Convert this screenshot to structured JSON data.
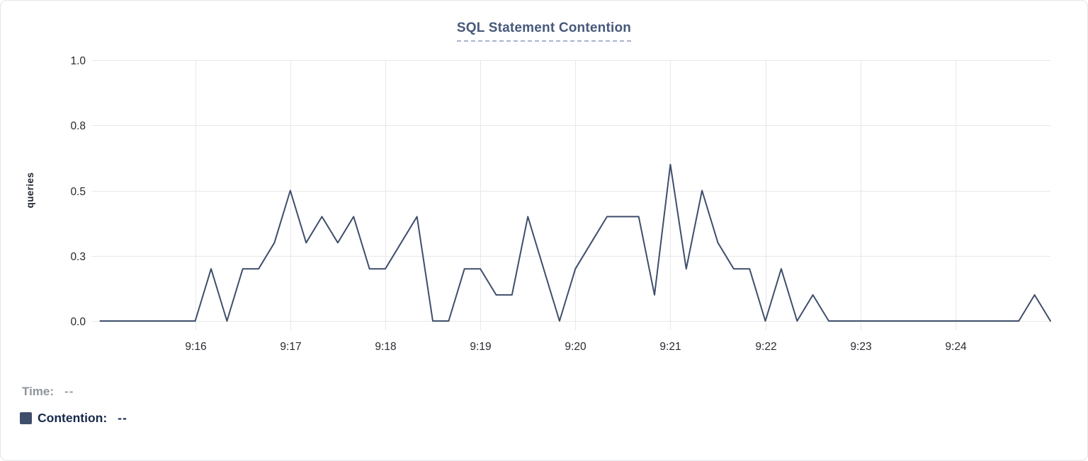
{
  "chart_data": {
    "type": "line",
    "title": "SQL Statement Contention",
    "ylabel": "queries",
    "grid": true,
    "legend_position": "bottom-left",
    "x_axis": {
      "start": "9:15:00",
      "end": "9:25:00",
      "sample_interval_seconds": 10,
      "tick_labels": [
        "9:16",
        "9:17",
        "9:18",
        "9:19",
        "9:20",
        "9:21",
        "9:22",
        "9:23",
        "9:24"
      ]
    },
    "y_axis": {
      "ylim": [
        0,
        1.0
      ],
      "tick_values": [
        0,
        0.25,
        0.5,
        0.75,
        1.0
      ],
      "tick_labels": [
        "0.0",
        "0.3",
        "0.5",
        "0.8",
        "1.0"
      ]
    },
    "series": [
      {
        "name": "Contention",
        "color": "#3e4e6b",
        "units": "queries",
        "x": [
          "9:15:00",
          "9:15:10",
          "9:15:20",
          "9:15:30",
          "9:15:40",
          "9:15:50",
          "9:16:00",
          "9:16:10",
          "9:16:20",
          "9:16:30",
          "9:16:40",
          "9:16:50",
          "9:17:00",
          "9:17:10",
          "9:17:20",
          "9:17:30",
          "9:17:40",
          "9:17:50",
          "9:18:00",
          "9:18:10",
          "9:18:20",
          "9:18:30",
          "9:18:40",
          "9:18:50",
          "9:19:00",
          "9:19:10",
          "9:19:20",
          "9:19:30",
          "9:19:40",
          "9:19:50",
          "9:20:00",
          "9:20:10",
          "9:20:20",
          "9:20:30",
          "9:20:40",
          "9:20:50",
          "9:21:00",
          "9:21:10",
          "9:21:20",
          "9:21:30",
          "9:21:40",
          "9:21:50",
          "9:22:00",
          "9:22:10",
          "9:22:20",
          "9:22:30",
          "9:22:40",
          "9:22:50",
          "9:23:00",
          "9:23:10",
          "9:23:20",
          "9:23:30",
          "9:23:40",
          "9:23:50",
          "9:24:00",
          "9:24:10",
          "9:24:20",
          "9:24:30",
          "9:24:40",
          "9:24:50",
          "9:25:00"
        ],
        "values": [
          0,
          0,
          0,
          0,
          0,
          0,
          0,
          0.2,
          0,
          0.2,
          0.2,
          0.3,
          0.5,
          0.3,
          0.4,
          0.3,
          0.4,
          0.2,
          0.2,
          0.3,
          0.4,
          0,
          0,
          0.2,
          0.2,
          0.1,
          0.1,
          0.4,
          0.2,
          0,
          0.2,
          0.3,
          0.4,
          0.4,
          0.4,
          0.1,
          0.6,
          0.2,
          0.5,
          0.3,
          0.2,
          0.2,
          0,
          0.2,
          0,
          0.1,
          0,
          0,
          0,
          0,
          0,
          0,
          0,
          0,
          0,
          0,
          0,
          0,
          0,
          0.1,
          0
        ]
      }
    ]
  },
  "legend": {
    "time_label": "Time:",
    "time_value": "--",
    "contention_label": "Contention:",
    "contention_value": "--",
    "swatch_color": "#3e4e6b"
  },
  "colors": {
    "line": "#3e4e6b",
    "title": "#47597b",
    "title_underline": "#a9b4ce",
    "gridline": "#e8e8e8",
    "tick_text": "#26292f",
    "axis_title_text": "#1c222e",
    "legend_muted": "#8f939c",
    "legend_strong": "#17294a",
    "card_border": "#e4e5e7"
  }
}
